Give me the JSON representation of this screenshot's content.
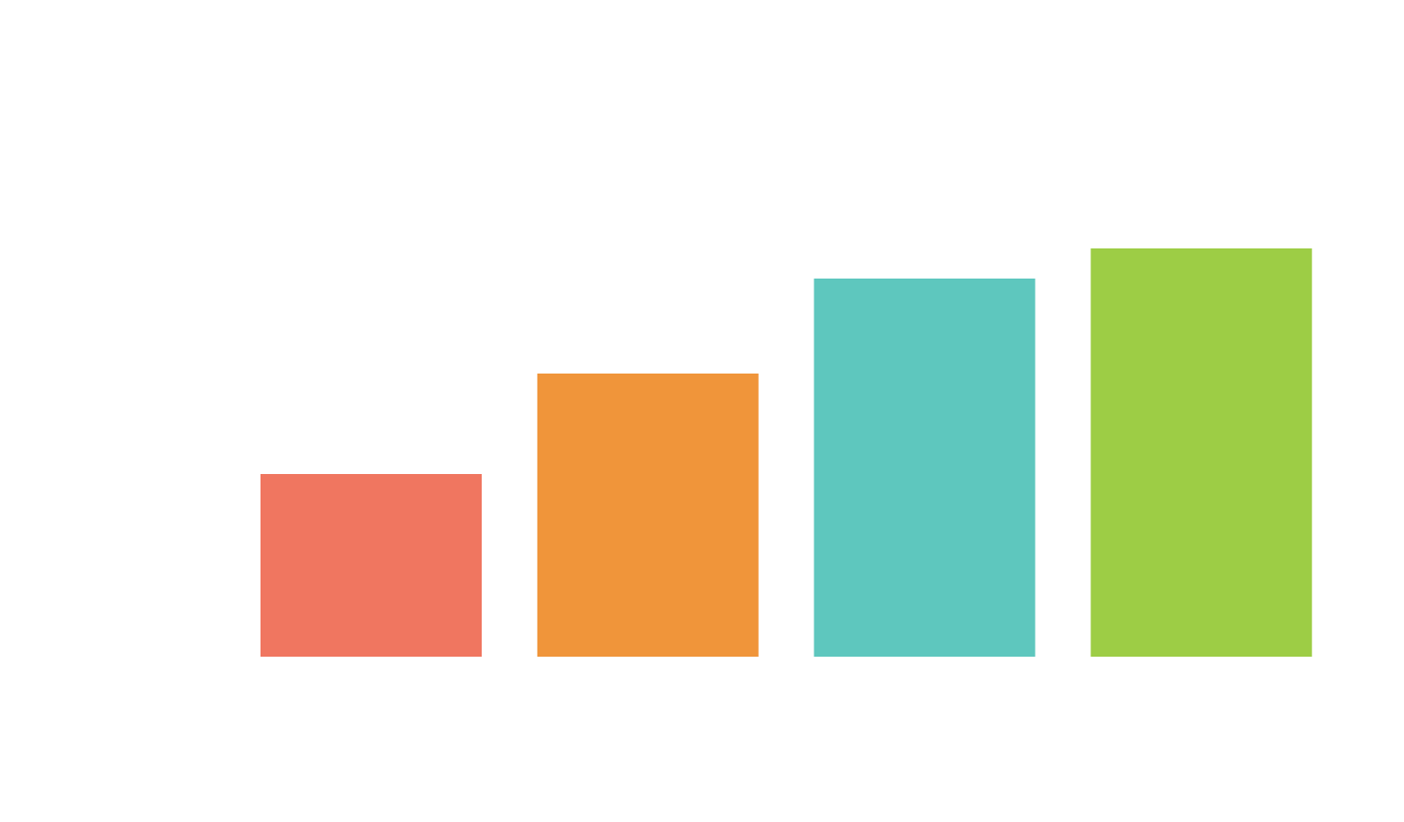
{
  "chart_data": {
    "type": "bar",
    "title": "",
    "xlabel": "",
    "ylabel": "",
    "categories": [
      "",
      "",
      "",
      ""
    ],
    "values": [
      20,
      31,
      41.4,
      44.7
    ],
    "colors": [
      "#f07660",
      "#f0953a",
      "#5ec7be",
      "#9dcd45"
    ],
    "ylim": [
      0,
      50
    ],
    "grid": false,
    "legend": "none"
  }
}
